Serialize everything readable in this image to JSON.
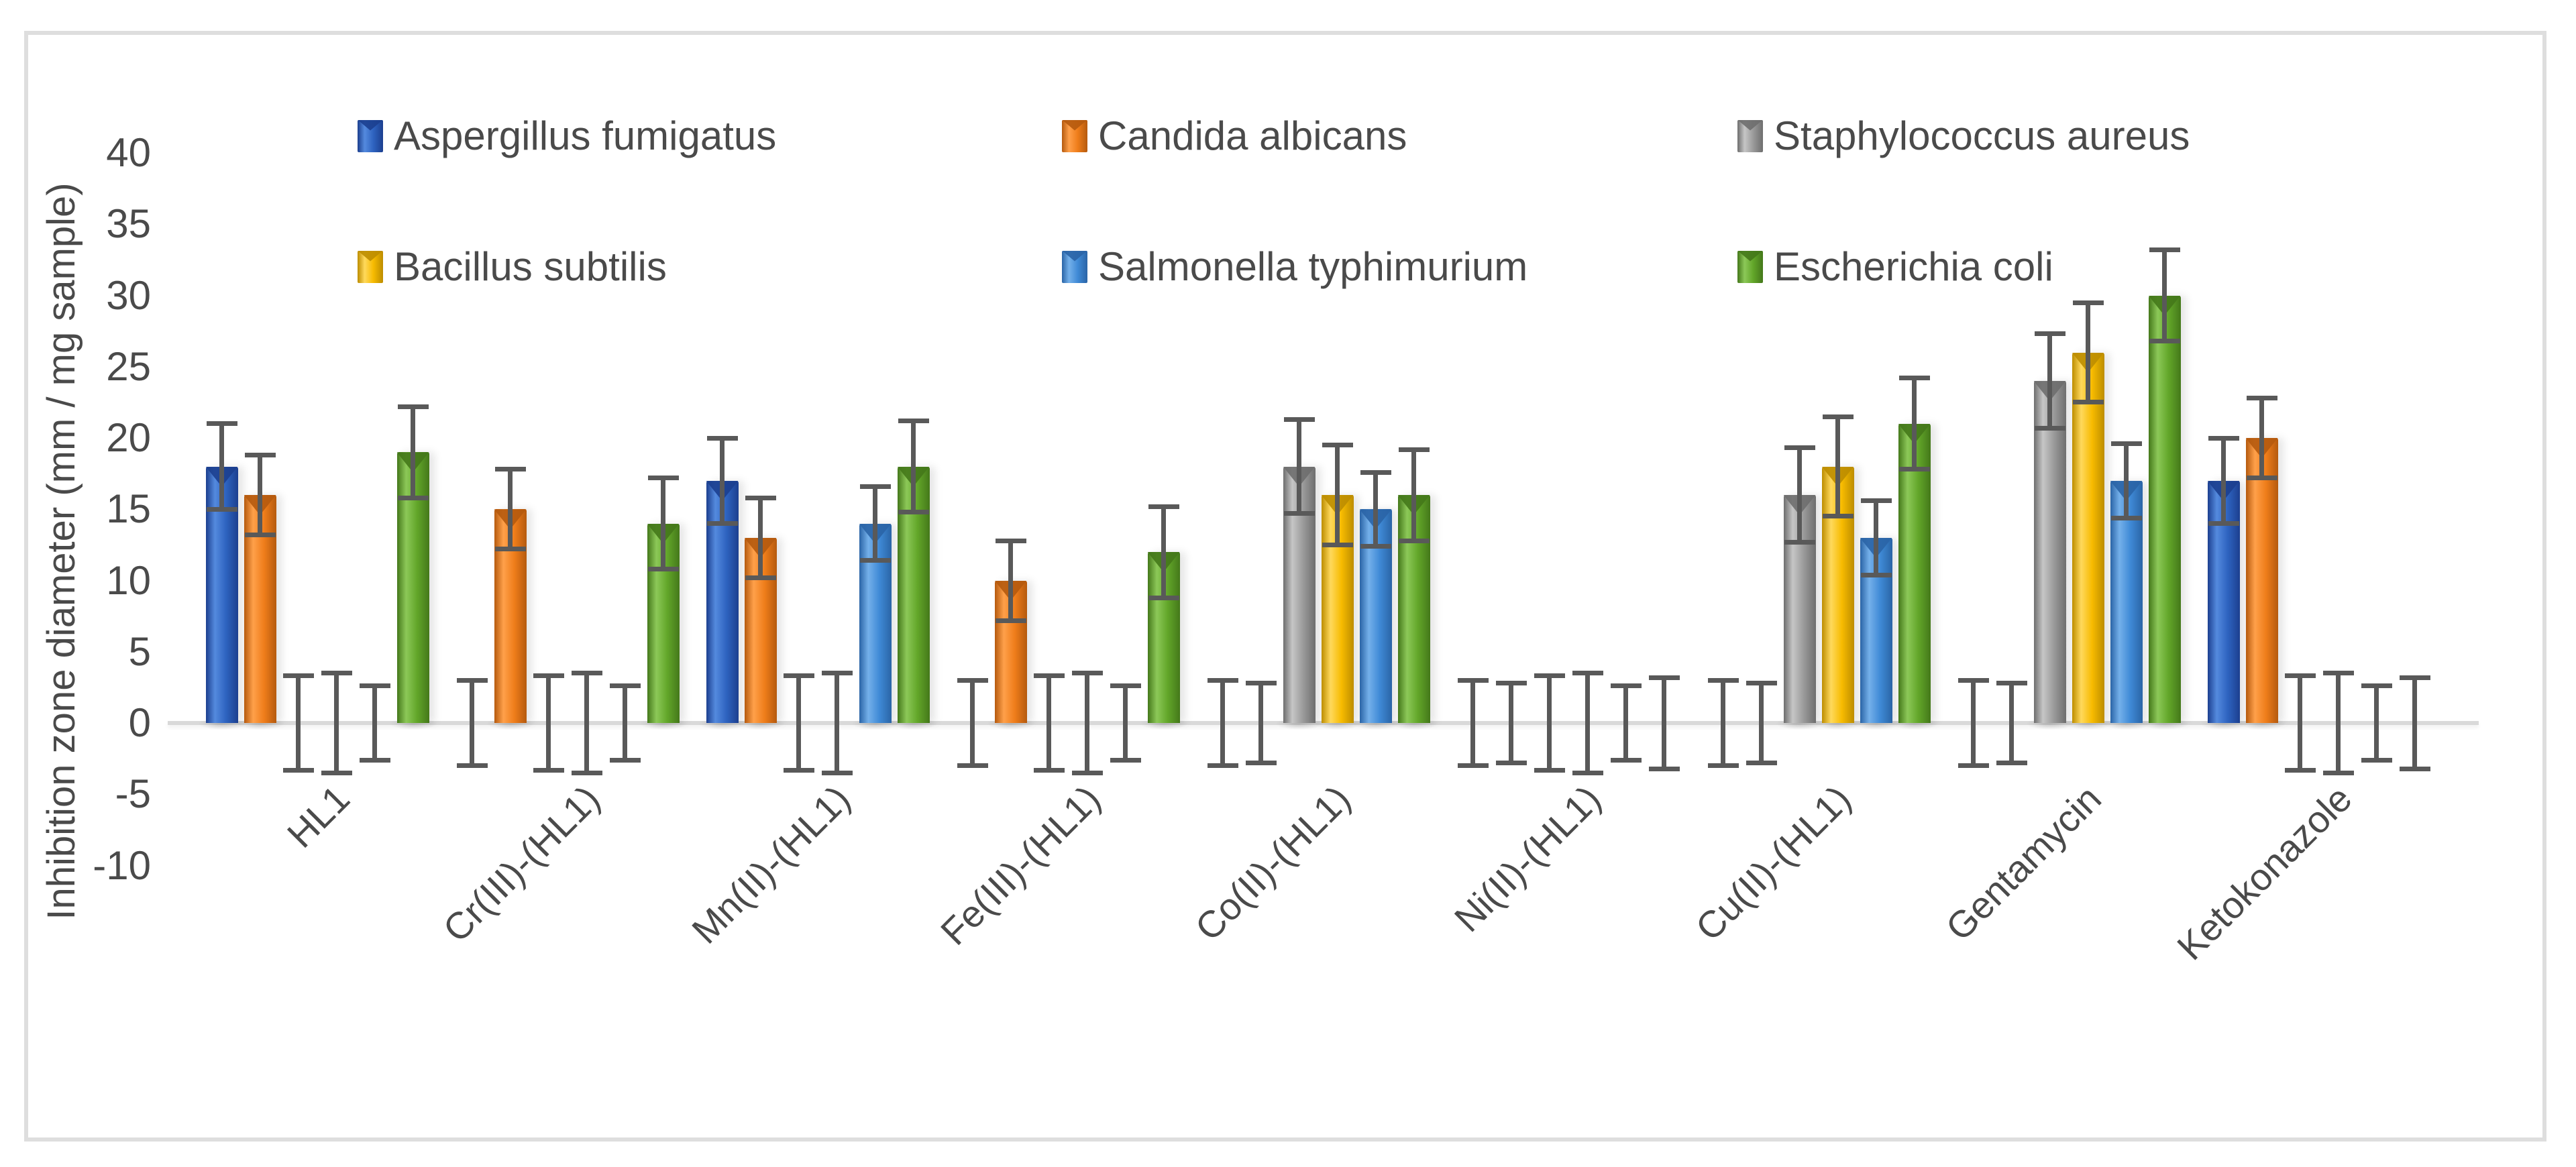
{
  "y_axis": {
    "title": "Inhibition zone diameter (mm / mg sample)",
    "ticks": [
      40,
      35,
      30,
      25,
      20,
      15,
      10,
      5,
      0,
      -5,
      -10
    ],
    "min": -10,
    "max": 40
  },
  "colors": {
    "background": "#ffffff",
    "frame_border": "#dedede",
    "axis_line": "#d9d9d9",
    "text": "#4a4a4a",
    "error_bar": "#595959"
  },
  "chart_data": {
    "type": "bar",
    "title": "",
    "xlabel": "",
    "ylabel": "Inhibition zone diameter (mm / mg sample)",
    "ylim": [
      -10,
      40
    ],
    "grid": false,
    "legend_position": "top, two rows inside plot",
    "error_bars": "symmetric, shown on every slot including zero-value slots",
    "categories": [
      "HL1",
      "Cr(III)-(HL1)",
      "Mn(II)-(HL1)",
      "Fe(III)-(HL1)",
      "Co(II)-(HL1)",
      "Ni(II)-(HL1)",
      "Cu(II)-(HL1)",
      "Gentamycin",
      "Ketokonazole"
    ],
    "series": [
      {
        "name": "Aspergillus fumigatus",
        "color": {
          "base": "#2e63c0",
          "light": "#548ade",
          "dark": "#1c3f8f"
        },
        "error": 3,
        "values": [
          18,
          0,
          17,
          0,
          0,
          0,
          0,
          0,
          17
        ]
      },
      {
        "name": "Candida albicans",
        "color": {
          "base": "#ef7d1a",
          "light": "#ffa04a",
          "dark": "#b55a0e"
        },
        "error": 2.8,
        "values": [
          16,
          15,
          13,
          10,
          0,
          0,
          0,
          0,
          20
        ]
      },
      {
        "name": "Staphylococcus aureus",
        "color": {
          "base": "#9a9a9a",
          "light": "#c6c6c6",
          "dark": "#6e6e6e"
        },
        "error": 3.3,
        "values": [
          0,
          0,
          0,
          0,
          18,
          0,
          16,
          24,
          0
        ]
      },
      {
        "name": "Bacillus subtilis",
        "color": {
          "base": "#f7bb00",
          "light": "#ffd95c",
          "dark": "#bd8d00"
        },
        "error": 3.5,
        "values": [
          0,
          0,
          0,
          0,
          16,
          0,
          18,
          26,
          0
        ]
      },
      {
        "name": "Salmonella typhimurium",
        "color": {
          "base": "#3f8ad6",
          "light": "#74b0ea",
          "dark": "#2a64a6"
        },
        "error": 2.6,
        "values": [
          0,
          0,
          14,
          0,
          15,
          0,
          13,
          17,
          0
        ]
      },
      {
        "name": "Escherichia coli",
        "color": {
          "base": "#62a629",
          "light": "#8cc858",
          "dark": "#44781a"
        },
        "error": 3.2,
        "values": [
          19,
          14,
          18,
          12,
          16,
          0,
          21,
          30,
          0
        ]
      }
    ]
  },
  "legend": {
    "rows": [
      [
        0,
        1,
        2
      ],
      [
        3,
        4,
        5
      ]
    ]
  }
}
